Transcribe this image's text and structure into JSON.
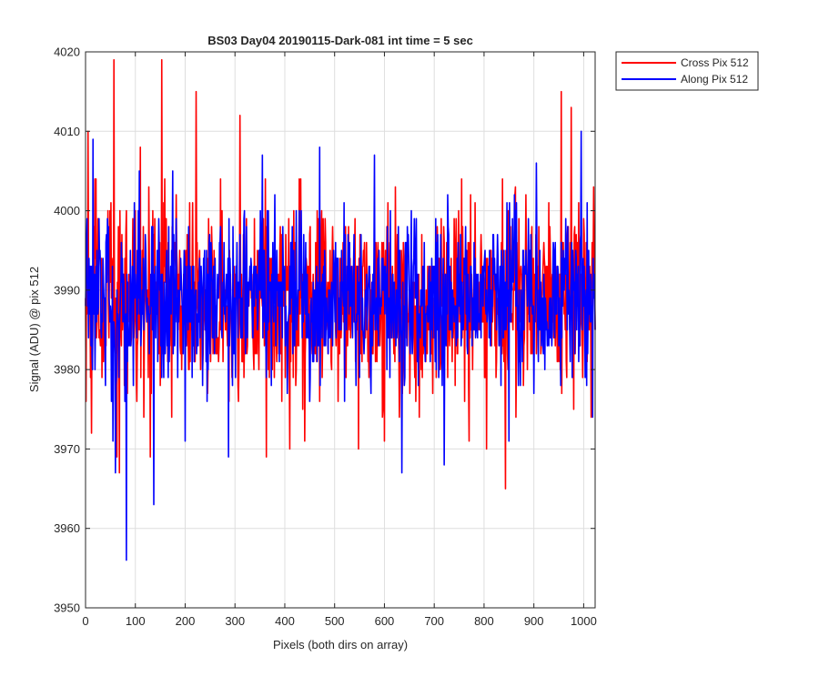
{
  "chart_data": {
    "type": "line",
    "title": "BS03 Day04 20190115-Dark-081 int time = 5 sec",
    "xlabel": "Pixels (both dirs on array)",
    "ylabel": "Signal (ADU) @ pix 512",
    "xlim": [
      0,
      1023
    ],
    "ylim": [
      3950,
      4020
    ],
    "xticks": [
      0,
      100,
      200,
      300,
      400,
      500,
      600,
      700,
      800,
      900,
      1000
    ],
    "yticks": [
      3950,
      3960,
      3970,
      3980,
      3990,
      4000,
      4010,
      4020
    ],
    "grid": true,
    "legend_position": "top-right, outside plot area",
    "series": [
      {
        "name": "Cross Pix 512",
        "color": "#ff0000",
        "stats": {
          "n_points": 1024,
          "mean": 3989,
          "typical_min": 3977,
          "typical_max": 4001
        },
        "extremes": [
          {
            "x": 1,
            "y": 3976
          },
          {
            "x": 5,
            "y": 4010
          },
          {
            "x": 12,
            "y": 3972
          },
          {
            "x": 57,
            "y": 4019
          },
          {
            "x": 63,
            "y": 3969
          },
          {
            "x": 68,
            "y": 3967
          },
          {
            "x": 110,
            "y": 4008
          },
          {
            "x": 130,
            "y": 3969
          },
          {
            "x": 153,
            "y": 4019
          },
          {
            "x": 222,
            "y": 4015
          },
          {
            "x": 310,
            "y": 4012
          },
          {
            "x": 363,
            "y": 3969
          },
          {
            "x": 410,
            "y": 3970
          },
          {
            "x": 440,
            "y": 3971
          },
          {
            "x": 548,
            "y": 3970
          },
          {
            "x": 600,
            "y": 3971
          },
          {
            "x": 770,
            "y": 3971
          },
          {
            "x": 805,
            "y": 3970
          },
          {
            "x": 843,
            "y": 3965
          },
          {
            "x": 955,
            "y": 4015
          },
          {
            "x": 975,
            "y": 4013
          },
          {
            "x": 1015,
            "y": 3974
          }
        ]
      },
      {
        "name": "Along Pix 512",
        "color": "#0000ff",
        "stats": {
          "n_points": 1024,
          "mean": 3989,
          "typical_min": 3979,
          "typical_max": 3999
        },
        "extremes": [
          {
            "x": 15,
            "y": 4009
          },
          {
            "x": 55,
            "y": 3971
          },
          {
            "x": 60,
            "y": 3967
          },
          {
            "x": 82,
            "y": 3956
          },
          {
            "x": 108,
            "y": 4005
          },
          {
            "x": 137,
            "y": 3963
          },
          {
            "x": 175,
            "y": 4005
          },
          {
            "x": 200,
            "y": 3971
          },
          {
            "x": 287,
            "y": 3969
          },
          {
            "x": 355,
            "y": 4007
          },
          {
            "x": 470,
            "y": 4008
          },
          {
            "x": 580,
            "y": 4007
          },
          {
            "x": 635,
            "y": 3967
          },
          {
            "x": 720,
            "y": 3968
          },
          {
            "x": 850,
            "y": 3971
          },
          {
            "x": 905,
            "y": 4006
          },
          {
            "x": 995,
            "y": 4010
          },
          {
            "x": 1018,
            "y": 3974
          }
        ]
      }
    ]
  }
}
